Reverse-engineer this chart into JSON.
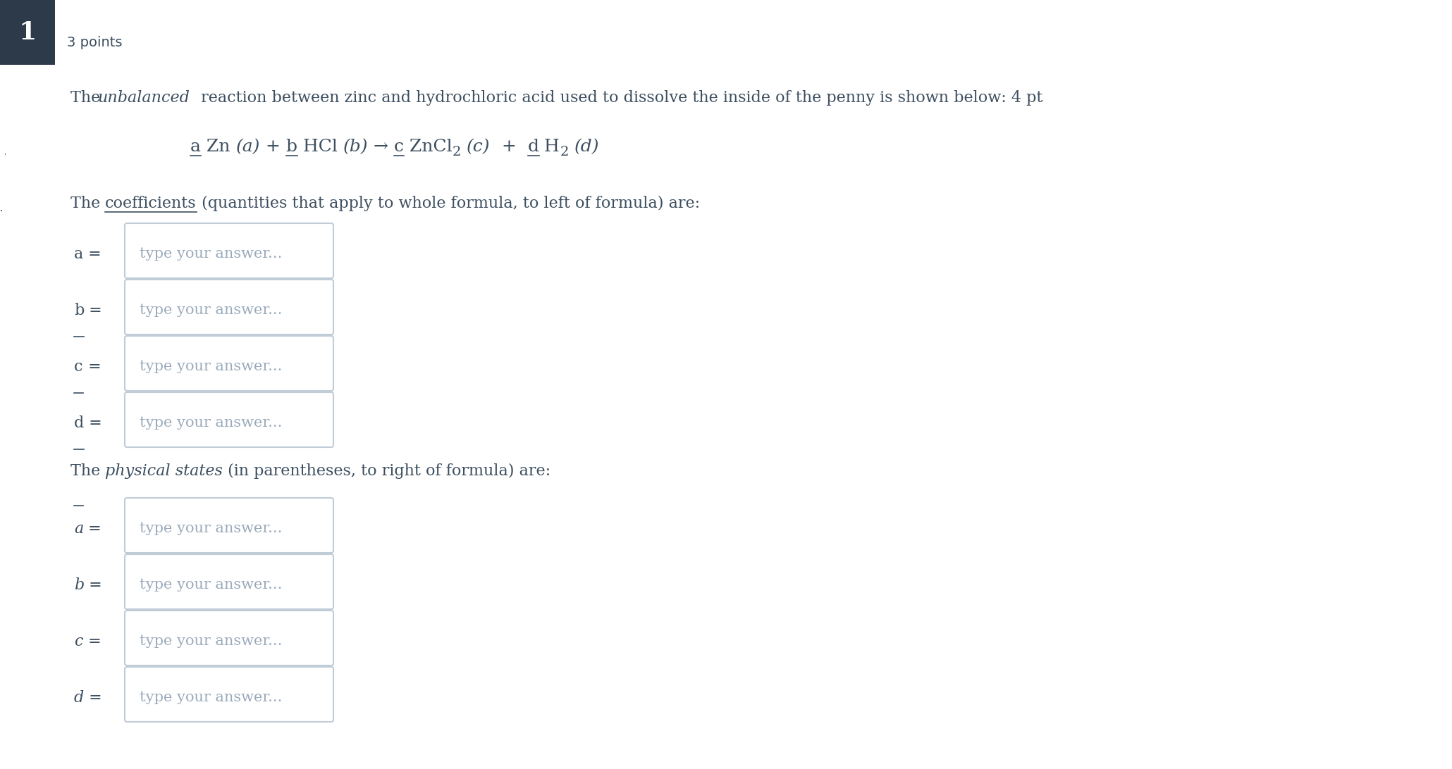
{
  "bg_color": "#ffffff",
  "text_color": "#3d4f60",
  "placeholder_color": "#9aaabb",
  "box_border_color": "#c0ccd8",
  "box_bg_color": "#ffffff",
  "header_bg": "#2d3a4a",
  "header_text": "1",
  "subheader": "3 points",
  "placeholder_text": "type your answer...",
  "font_size_main": 16,
  "font_size_eq": 18,
  "font_size_header": 22,
  "font_size_small": 14
}
